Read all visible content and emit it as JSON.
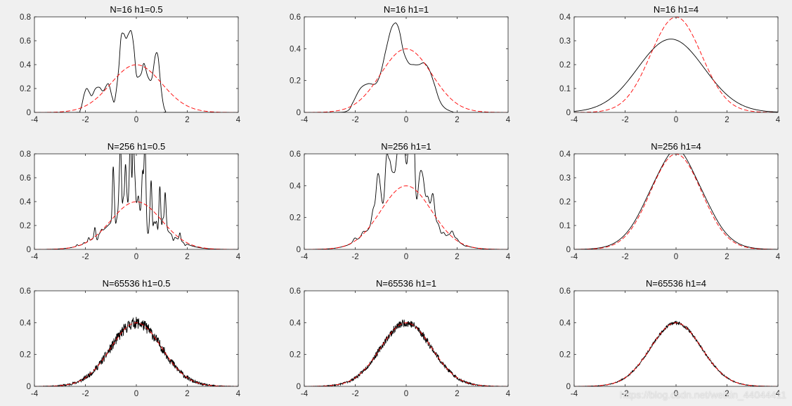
{
  "figure": {
    "background": "#f0f0f0",
    "watermark": "https://blog.csdn.net/weixin_44044411"
  },
  "colors": {
    "estimate": "#000000",
    "true_pdf": "#ff0000",
    "axes": "#262626"
  },
  "chart_data": [
    {
      "type": "line",
      "title": "N=16  h1=0.5",
      "N": 16,
      "h1": 0.5,
      "xlim": [
        -4,
        4
      ],
      "ylim": [
        0,
        0.8
      ],
      "xticks": [
        -4,
        -2,
        0,
        2,
        4
      ],
      "yticks": [
        0,
        0.2,
        0.4,
        0.6,
        0.8
      ],
      "series": [
        {
          "name": "kernel estimate",
          "style": "solid",
          "color": "#000000",
          "x": [
            -4,
            -2.4,
            -2.2,
            -2.05,
            -1.95,
            -1.85,
            -1.75,
            -1.6,
            -1.45,
            -1.3,
            -1.1,
            -0.95,
            -0.85,
            -0.7,
            -0.6,
            -0.5,
            -0.4,
            -0.3,
            -0.2,
            -0.1,
            0,
            0.1,
            0.2,
            0.3,
            0.45,
            0.6,
            0.75,
            0.85,
            0.95,
            1.05,
            1.15,
            1.3,
            4
          ],
          "y": [
            0,
            0,
            0.02,
            0.15,
            0.2,
            0.17,
            0.14,
            0.2,
            0.21,
            0.18,
            0.24,
            0.13,
            0.1,
            0.35,
            0.63,
            0.66,
            0.62,
            0.66,
            0.68,
            0.55,
            0.32,
            0.3,
            0.33,
            0.41,
            0.3,
            0.28,
            0.48,
            0.47,
            0.25,
            0.08,
            0.01,
            0,
            0
          ]
        },
        {
          "name": "true pdf",
          "style": "dashed",
          "color": "#ff0000",
          "pdf": "normal",
          "mean": 0,
          "sd": 1
        }
      ]
    },
    {
      "type": "line",
      "title": "N=16  h1=1",
      "N": 16,
      "h1": 1,
      "xlim": [
        -4,
        4
      ],
      "ylim": [
        0,
        0.6
      ],
      "xticks": [
        -4,
        -2,
        0,
        2,
        4
      ],
      "yticks": [
        0,
        0.2,
        0.4,
        0.6
      ],
      "series": [
        {
          "name": "kernel estimate",
          "style": "solid",
          "color": "#000000",
          "x": [
            -4,
            -2.8,
            -2.3,
            -2.1,
            -1.8,
            -1.5,
            -1.2,
            -1.0,
            -0.8,
            -0.6,
            -0.45,
            -0.35,
            -0.25,
            -0.1,
            0.1,
            0.3,
            0.5,
            0.7,
            0.9,
            1.1,
            1.3,
            1.5,
            1.8,
            2.1,
            4
          ],
          "y": [
            0,
            0,
            0.01,
            0.06,
            0.15,
            0.18,
            0.18,
            0.25,
            0.39,
            0.52,
            0.56,
            0.55,
            0.5,
            0.38,
            0.31,
            0.3,
            0.3,
            0.31,
            0.27,
            0.18,
            0.08,
            0.03,
            0.005,
            0,
            0
          ]
        },
        {
          "name": "true pdf",
          "style": "dashed",
          "color": "#ff0000",
          "pdf": "normal",
          "mean": 0,
          "sd": 1
        }
      ]
    },
    {
      "type": "line",
      "title": "N=16  h1=4",
      "N": 16,
      "h1": 4,
      "xlim": [
        -4,
        4
      ],
      "ylim": [
        0,
        0.4
      ],
      "xticks": [
        -4,
        -2,
        0,
        2,
        4
      ],
      "yticks": [
        0,
        0.1,
        0.2,
        0.3,
        0.4
      ],
      "series": [
        {
          "name": "kernel estimate",
          "style": "solid",
          "color": "#000000",
          "pdf": "normal",
          "mean": -0.2,
          "sd": 1.3
        },
        {
          "name": "true pdf",
          "style": "dashed",
          "color": "#ff0000",
          "pdf": "normal",
          "mean": 0,
          "sd": 1
        }
      ]
    },
    {
      "type": "line",
      "title": "N=256  h1=0.5",
      "N": 256,
      "h1": 0.5,
      "xlim": [
        -4,
        4
      ],
      "ylim": [
        0,
        0.8
      ],
      "xticks": [
        -4,
        -2,
        0,
        2,
        4
      ],
      "yticks": [
        0,
        0.2,
        0.4,
        0.6,
        0.8
      ],
      "series": [
        {
          "name": "kernel estimate",
          "style": "solid",
          "color": "#000000",
          "pdf": "noisy-normal",
          "mean": -0.05,
          "sd": 1,
          "noise": 0.55,
          "noise_floor": 0.12,
          "peak_width": 0.03,
          "seed": 256
        },
        {
          "name": "true pdf",
          "style": "dashed",
          "color": "#ff0000",
          "pdf": "normal",
          "mean": 0,
          "sd": 1
        }
      ]
    },
    {
      "type": "line",
      "title": "N=256  h1=1",
      "N": 256,
      "h1": 1,
      "xlim": [
        -4,
        4
      ],
      "ylim": [
        0,
        0.6
      ],
      "xticks": [
        -4,
        -2,
        0,
        2,
        4
      ],
      "yticks": [
        0,
        0.2,
        0.4,
        0.6
      ],
      "series": [
        {
          "name": "kernel estimate",
          "style": "solid",
          "color": "#000000",
          "pdf": "noisy-normal",
          "mean": 0,
          "sd": 1,
          "noise": 0.35,
          "noise_floor": 0.05,
          "peak_width": 0.06,
          "seed": 512
        },
        {
          "name": "true pdf",
          "style": "dashed",
          "color": "#ff0000",
          "pdf": "normal",
          "mean": 0,
          "sd": 1
        }
      ]
    },
    {
      "type": "line",
      "title": "N=256  h1=4",
      "N": 256,
      "h1": 4,
      "xlim": [
        -4,
        4
      ],
      "ylim": [
        0,
        0.4
      ],
      "xticks": [
        -4,
        -2,
        0,
        2,
        4
      ],
      "yticks": [
        0,
        0.1,
        0.2,
        0.3,
        0.4
      ],
      "series": [
        {
          "name": "kernel estimate",
          "style": "solid",
          "color": "#000000",
          "pdf": "noisy-normal",
          "mean": 0,
          "sd": 1.05,
          "noise": 0.03,
          "noise_floor": 0,
          "peak_width": 0.4,
          "seed": 7,
          "flat_top": 0.37
        },
        {
          "name": "true pdf",
          "style": "dashed",
          "color": "#ff0000",
          "pdf": "normal",
          "mean": 0,
          "sd": 1
        }
      ]
    },
    {
      "type": "line",
      "title": "N=65536  h1=0.5",
      "N": 65536,
      "h1": 0.5,
      "xlim": [
        -4,
        4
      ],
      "ylim": [
        0,
        0.6
      ],
      "xticks": [
        -4,
        -2,
        0,
        2,
        4
      ],
      "yticks": [
        0,
        0.2,
        0.4,
        0.6
      ],
      "series": [
        {
          "name": "kernel estimate",
          "style": "solid",
          "color": "#000000",
          "pdf": "jagged-normal",
          "mean": 0,
          "sd": 1,
          "noise": 0.12,
          "seed": 11
        },
        {
          "name": "true pdf",
          "style": "dashed",
          "color": "#ff0000",
          "pdf": "normal",
          "mean": 0,
          "sd": 1
        }
      ]
    },
    {
      "type": "line",
      "title": "N=65536  h1=1",
      "N": 65536,
      "h1": 1,
      "xlim": [
        -4,
        4
      ],
      "ylim": [
        0,
        0.6
      ],
      "xticks": [
        -4,
        -2,
        0,
        2,
        4
      ],
      "yticks": [
        0,
        0.2,
        0.4,
        0.6
      ],
      "series": [
        {
          "name": "kernel estimate",
          "style": "solid",
          "color": "#000000",
          "pdf": "jagged-normal",
          "mean": 0,
          "sd": 1,
          "noise": 0.08,
          "seed": 23
        },
        {
          "name": "true pdf",
          "style": "dashed",
          "color": "#ff0000",
          "pdf": "normal",
          "mean": 0,
          "sd": 1
        }
      ]
    },
    {
      "type": "line",
      "title": "N=65536  h1=4",
      "N": 65536,
      "h1": 4,
      "xlim": [
        -4,
        4
      ],
      "ylim": [
        0,
        0.6
      ],
      "xticks": [
        -4,
        -2,
        0,
        2,
        4
      ],
      "yticks": [
        0,
        0.2,
        0.4,
        0.6
      ],
      "series": [
        {
          "name": "kernel estimate",
          "style": "solid",
          "color": "#000000",
          "pdf": "jagged-normal",
          "mean": 0,
          "sd": 1,
          "noise": 0.035,
          "seed": 41
        },
        {
          "name": "true pdf",
          "style": "dashed",
          "color": "#ff0000",
          "pdf": "normal",
          "mean": 0,
          "sd": 1
        }
      ]
    }
  ]
}
